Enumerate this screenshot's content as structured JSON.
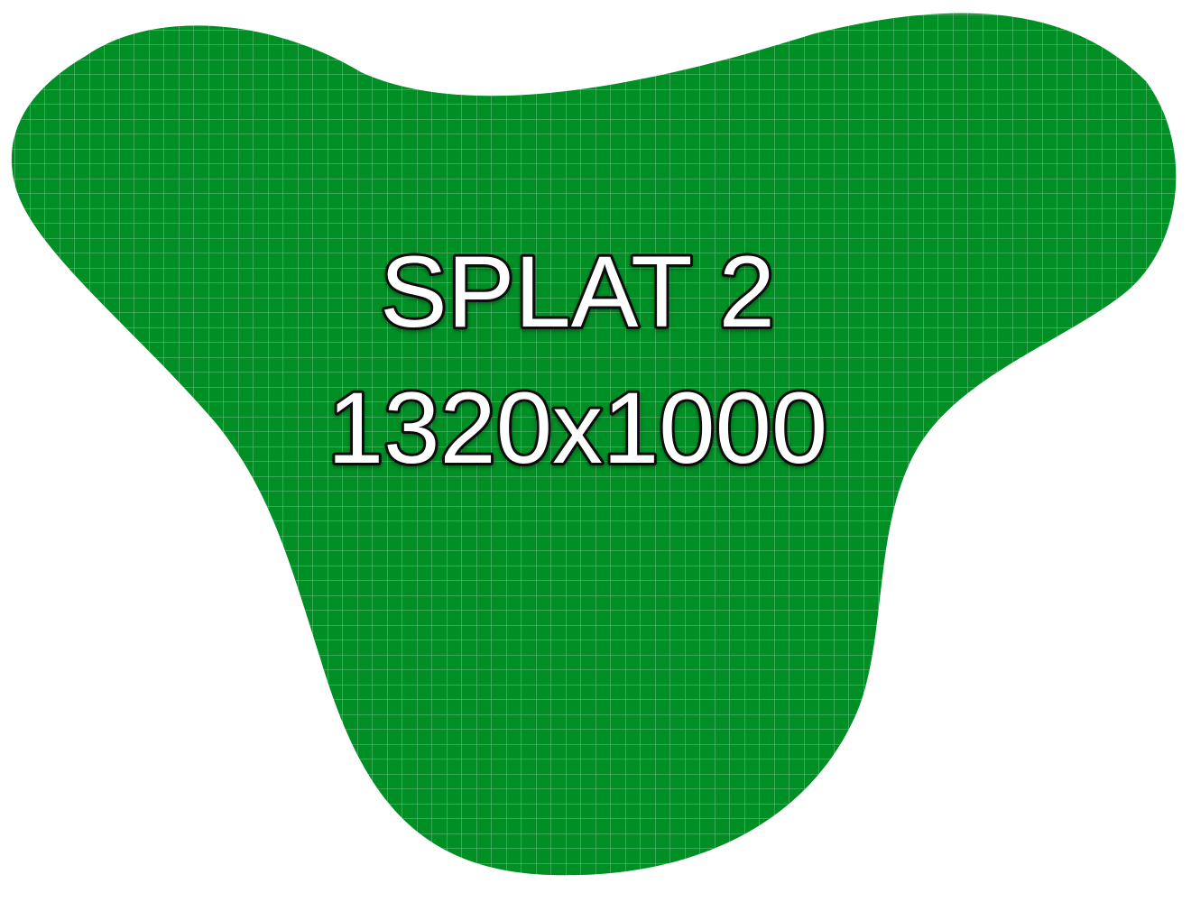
{
  "placeholder": {
    "title_line1": "SPLAT 2",
    "title_line2": "1320x1000"
  },
  "colors": {
    "background": "#ffffff",
    "splat_fill": "#008f25",
    "grid_line": "#ffffff",
    "text_fill": "#ffffff",
    "text_outline": "#0b0b0b"
  }
}
